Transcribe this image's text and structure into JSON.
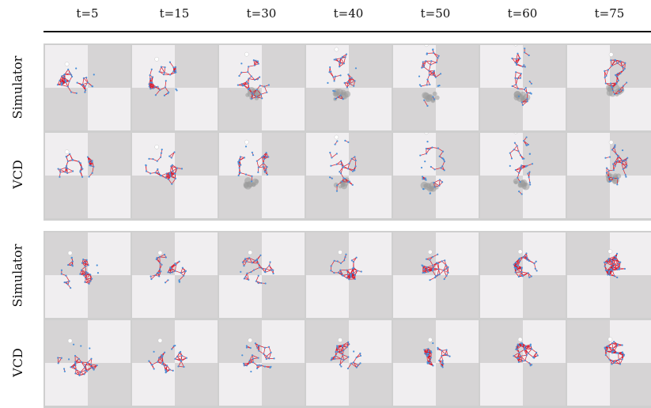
{
  "time_labels": [
    "t=5",
    "t=15",
    "t=30",
    "t=40",
    "t=50",
    "t=60",
    "t=75"
  ],
  "groups": [
    {
      "rows": [
        {
          "label": "Simulator"
        },
        {
          "label": "VCD"
        }
      ]
    },
    {
      "rows": [
        {
          "label": "Simulator"
        },
        {
          "label": "VCD"
        }
      ]
    }
  ],
  "colors": {
    "floor_light": "#f0eef0",
    "floor_dark": "#d6d4d5",
    "edge": "#d9182b",
    "node": "#4a90d9",
    "shadow": "#9a9a9a",
    "gripper": "#ffffff"
  }
}
